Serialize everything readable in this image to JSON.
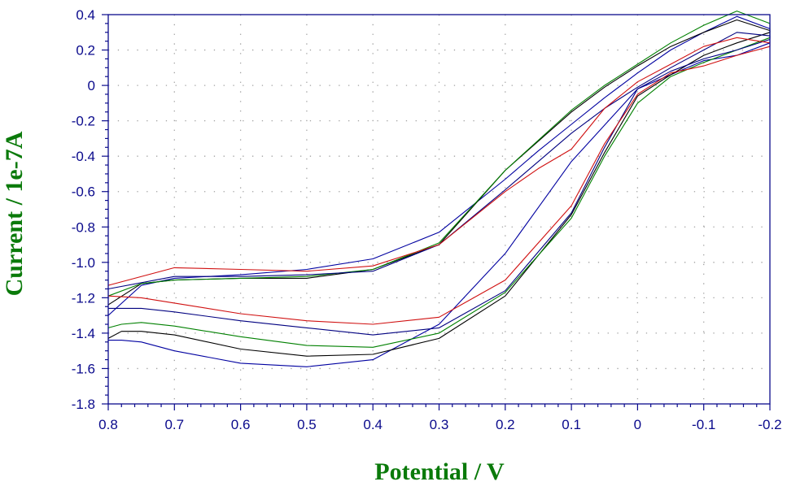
{
  "chart_data": {
    "type": "line",
    "title": "",
    "xlabel": "Potential / V",
    "ylabel": "Current / 1e-7A",
    "xlim": [
      0.8,
      -0.2
    ],
    "ylim": [
      -1.8,
      0.4
    ],
    "x_ticks": [
      "0.8",
      "0.7",
      "0.6",
      "0.5",
      "0.4",
      "0.3",
      "0.2",
      "0.1",
      "0",
      "-0.1",
      "-0.2"
    ],
    "y_ticks": [
      "0.4",
      "0.2",
      "0",
      "-0.2",
      "-0.4",
      "-0.6",
      "-0.8",
      "-1.0",
      "-1.2",
      "-1.4",
      "-1.6",
      "-1.8"
    ],
    "grid": true,
    "colors": {
      "axis": "#0a0a8c",
      "grid": "#a0a0a0",
      "xlabel": "#0a7a0a",
      "ylabel": "#0a7a0a"
    },
    "series": [
      {
        "color": "#0000a0",
        "x": [
          0.8,
          0.78,
          0.75,
          0.7,
          0.6,
          0.5,
          0.4,
          0.3,
          0.2,
          0.1,
          0.0,
          -0.1,
          -0.15,
          -0.2,
          -0.2,
          -0.15,
          -0.1,
          -0.05,
          0.0,
          0.05,
          0.1,
          0.15,
          0.2,
          0.3,
          0.4,
          0.5,
          0.6,
          0.7,
          0.75,
          0.8
        ],
        "y": [
          -1.44,
          -1.44,
          -1.45,
          -1.5,
          -1.57,
          -1.59,
          -1.55,
          -1.35,
          -0.95,
          -0.43,
          -0.02,
          0.14,
          0.17,
          0.24,
          0.32,
          0.39,
          0.3,
          0.2,
          0.07,
          -0.07,
          -0.22,
          -0.37,
          -0.53,
          -0.83,
          -0.98,
          -1.04,
          -1.07,
          -1.09,
          -1.13,
          -1.3
        ]
      },
      {
        "color": "#000000",
        "x": [
          0.8,
          0.78,
          0.75,
          0.7,
          0.6,
          0.5,
          0.4,
          0.3,
          0.2,
          0.1,
          0.05,
          0.0,
          -0.05,
          -0.1,
          -0.15,
          -0.2,
          -0.2,
          -0.15,
          -0.1,
          -0.05,
          0.0,
          0.05,
          0.1,
          0.2,
          0.3,
          0.4,
          0.5,
          0.6,
          0.7,
          0.75,
          0.8
        ],
        "y": [
          -1.43,
          -1.39,
          -1.39,
          -1.41,
          -1.49,
          -1.53,
          -1.52,
          -1.43,
          -1.19,
          -0.73,
          -0.38,
          -0.06,
          0.06,
          0.17,
          0.24,
          0.3,
          0.31,
          0.37,
          0.3,
          0.22,
          0.11,
          -0.01,
          -0.15,
          -0.48,
          -0.9,
          -1.04,
          -1.09,
          -1.09,
          -1.1,
          -1.12,
          -1.24
        ]
      },
      {
        "color": "#008000",
        "x": [
          0.8,
          0.78,
          0.75,
          0.7,
          0.6,
          0.5,
          0.4,
          0.3,
          0.2,
          0.1,
          0.05,
          0.0,
          -0.05,
          -0.1,
          -0.15,
          -0.2,
          -0.2,
          -0.15,
          -0.1,
          -0.05,
          0.0,
          0.05,
          0.1,
          0.2,
          0.3,
          0.4,
          0.5,
          0.6,
          0.7,
          0.75,
          0.8
        ],
        "y": [
          -1.37,
          -1.35,
          -1.34,
          -1.36,
          -1.42,
          -1.47,
          -1.48,
          -1.4,
          -1.17,
          -0.75,
          -0.4,
          -0.1,
          0.05,
          0.13,
          0.2,
          0.27,
          0.35,
          0.42,
          0.34,
          0.24,
          0.12,
          0.0,
          -0.14,
          -0.48,
          -0.89,
          -1.04,
          -1.08,
          -1.09,
          -1.1,
          -1.12,
          -1.19
        ]
      },
      {
        "color": "#000080",
        "x": [
          0.8,
          0.75,
          0.7,
          0.6,
          0.5,
          0.4,
          0.3,
          0.2,
          0.1,
          0.05,
          0.0,
          -0.05,
          -0.1,
          -0.15,
          -0.2,
          -0.2,
          -0.15,
          -0.1,
          -0.05,
          0.0,
          0.05,
          0.1,
          0.2,
          0.3,
          0.4,
          0.5,
          0.6,
          0.7,
          0.8
        ],
        "y": [
          -1.26,
          -1.26,
          -1.28,
          -1.33,
          -1.37,
          -1.41,
          -1.37,
          -1.16,
          -0.72,
          -0.35,
          -0.02,
          0.08,
          0.15,
          0.2,
          0.26,
          0.28,
          0.3,
          0.2,
          0.1,
          -0.01,
          -0.13,
          -0.27,
          -0.59,
          -0.9,
          -1.05,
          -1.07,
          -1.08,
          -1.08,
          -1.15
        ]
      },
      {
        "color": "#d01010",
        "x": [
          0.8,
          0.75,
          0.7,
          0.6,
          0.5,
          0.4,
          0.3,
          0.2,
          0.1,
          0.05,
          0.0,
          -0.05,
          -0.1,
          -0.15,
          -0.2,
          -0.2,
          -0.15,
          -0.1,
          -0.05,
          0.0,
          0.05,
          0.1,
          0.15,
          0.2,
          0.3,
          0.4,
          0.5,
          0.6,
          0.7,
          0.8
        ],
        "y": [
          -1.19,
          -1.2,
          -1.23,
          -1.29,
          -1.33,
          -1.35,
          -1.31,
          -1.1,
          -0.68,
          -0.33,
          -0.05,
          0.07,
          0.11,
          0.17,
          0.22,
          0.24,
          0.27,
          0.22,
          0.12,
          0.02,
          -0.13,
          -0.36,
          -0.47,
          -0.6,
          -0.9,
          -1.02,
          -1.05,
          -1.04,
          -1.03,
          -1.13
        ]
      }
    ]
  }
}
